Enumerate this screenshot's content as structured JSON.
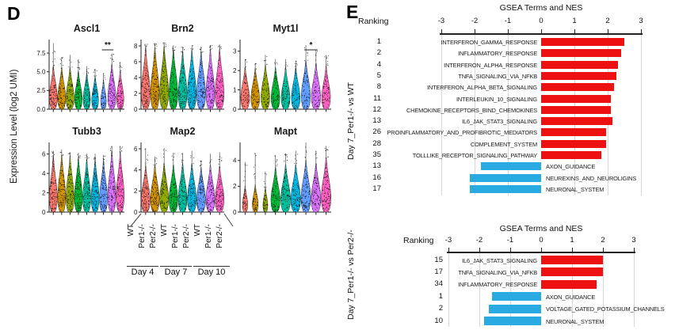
{
  "panelD": {
    "label": "D"
  },
  "panelE": {
    "label": "E"
  },
  "chart_data": [
    {
      "type": "violin",
      "panel": "D",
      "y_axis_label": "Expression Level (log2 UMI)",
      "group_labels": [
        "WT",
        "Per1-/-",
        "Per2-/-",
        "WT",
        "Per1-/-",
        "Per2-/-",
        "WT",
        "Per1-/-",
        "Per2-/-"
      ],
      "day_labels": [
        "Day 4",
        "Day 7",
        "Day 10"
      ],
      "palette": [
        "#F8766D",
        "#D39200",
        "#93AA00",
        "#00BA38",
        "#00C19F",
        "#00B9E3",
        "#619CFF",
        "#DB72FB",
        "#FF61C3"
      ],
      "plots": [
        {
          "gene": "Ascl1",
          "yticks": [
            "0.0",
            "2.5",
            "5.0",
            "7.5"
          ],
          "ymax": 9.3,
          "significance": {
            "text": "**",
            "span": [
              7,
              8
            ]
          },
          "heights": [
            0.62,
            0.6,
            0.6,
            0.55,
            0.52,
            0.48,
            0.42,
            0.65,
            0.55
          ],
          "spikes": [
            0.95,
            0.75,
            0.78,
            0.72,
            0.62,
            0.58,
            0.52,
            0.8,
            0.68
          ],
          "widths": [
            1,
            1,
            1,
            0.95,
            0.9,
            0.85,
            0.7,
            1,
            0.9
          ],
          "densities": [
            85,
            85,
            85,
            80,
            75,
            70,
            45,
            90,
            75
          ]
        },
        {
          "gene": "Brn2",
          "yticks": [
            "0",
            "2",
            "4",
            "6",
            "8"
          ],
          "ymax": 8.8,
          "heights": [
            0.88,
            0.88,
            0.9,
            0.85,
            0.82,
            0.85,
            0.82,
            0.85,
            0.86
          ],
          "spikes": [
            0.94,
            0.95,
            0.96,
            0.92,
            0.9,
            0.92,
            0.9,
            0.92,
            0.93
          ],
          "widths": [
            1,
            1,
            1,
            1,
            1,
            1,
            1,
            1,
            1
          ],
          "density": 110
        },
        {
          "gene": "Myt1l",
          "yticks": [
            "0",
            "1",
            "2",
            "3"
          ],
          "ymax": 3.6,
          "significance": {
            "text": "*",
            "span": [
              7,
              8
            ]
          },
          "heights": [
            0.6,
            0.58,
            0.64,
            0.6,
            0.6,
            0.6,
            0.7,
            0.66,
            0.62
          ],
          "spikes": [
            0.72,
            0.66,
            0.78,
            0.72,
            0.72,
            0.7,
            0.92,
            0.85,
            0.78
          ],
          "widths": [
            0.9,
            0.9,
            0.9,
            0.9,
            0.9,
            0.9,
            0.95,
            0.95,
            0.9
          ],
          "density": 70
        },
        {
          "gene": "Tubb3",
          "yticks": [
            "0",
            "2",
            "4",
            "6"
          ],
          "ymax": 7.2,
          "heights": [
            0.8,
            0.82,
            0.8,
            0.78,
            0.76,
            0.76,
            0.74,
            0.88,
            0.86
          ],
          "spikes": [
            0.88,
            0.9,
            0.86,
            0.85,
            0.84,
            0.84,
            0.82,
            0.95,
            0.95
          ],
          "widths": [
            1,
            1,
            1,
            1,
            1,
            1,
            1,
            1,
            1
          ],
          "density": 100
        },
        {
          "gene": "Map2",
          "yticks": [
            "0",
            "2",
            "4",
            "6"
          ],
          "ymax": 6.6,
          "heights": [
            0.66,
            0.68,
            0.7,
            0.68,
            0.7,
            0.7,
            0.64,
            0.68,
            0.66
          ],
          "spikes": [
            0.92,
            0.8,
            0.92,
            0.85,
            0.85,
            0.88,
            0.74,
            0.84,
            0.86
          ],
          "widths": [
            1,
            1,
            1,
            1,
            1,
            1,
            1,
            1,
            1
          ],
          "density": 95
        },
        {
          "gene": "Mapt",
          "yticks": [
            "0",
            "2",
            "4"
          ],
          "ymax": 5.4,
          "heights": [
            0.38,
            0.4,
            0.36,
            0.64,
            0.68,
            0.68,
            0.74,
            0.7,
            0.78
          ],
          "spikes": [
            0.72,
            0.85,
            0.58,
            0.82,
            0.84,
            0.88,
            1.0,
            0.88,
            0.95
          ],
          "widths": [
            0.55,
            0.6,
            0.5,
            0.95,
            1,
            1,
            1,
            1,
            1
          ],
          "densities": [
            45,
            50,
            40,
            85,
            90,
            90,
            100,
            95,
            105
          ]
        }
      ]
    },
    {
      "type": "bar",
      "panel": "E-top",
      "title": "GSEA Terms and NES",
      "ranking_label": "Ranking",
      "side_label": "Day 7_Per1-/- vs WT",
      "orientation": "horizontal",
      "xlim": [
        -3,
        3
      ],
      "ticks": [
        -3,
        -2,
        -1,
        0,
        1,
        2,
        3
      ],
      "positive_color": "#EE1111",
      "negative_color": "#29ABE2",
      "rows": [
        {
          "rank": "1",
          "term": "INTERFERON_GAMMA_RESPONSE",
          "nes": 2.5
        },
        {
          "rank": "2",
          "term": "INFLAMMATORY_RESPONSE",
          "nes": 2.4
        },
        {
          "rank": "4",
          "term": "INTERFERON_ALPHA_RESPONSE",
          "nes": 2.3
        },
        {
          "rank": "5",
          "term": "TNFA_SIGNALING_VIA_NFKB",
          "nes": 2.25
        },
        {
          "rank": "8",
          "term": "INTERFERON_ALPHA_BETA_SIGNALING",
          "nes": 2.2
        },
        {
          "rank": "11",
          "term": "INTERLEUKIN_10_SIGNALING",
          "nes": 2.1
        },
        {
          "rank": "12",
          "term": "CHEMOKINE_RECEPTORS_BIND_CHEMOKINES",
          "nes": 2.1
        },
        {
          "rank": "13",
          "term": "IL6_JAK_STAT3_SIGNALING",
          "nes": 2.15
        },
        {
          "rank": "26",
          "term": "PROINFLAMMATORY_AND_PROFIBROTIC_MEDIATORS",
          "nes": 1.95
        },
        {
          "rank": "28",
          "term": "COMPLEMENT_SYSTEM",
          "nes": 1.95
        },
        {
          "rank": "35",
          "term": "TOLLLIKE_RECEPTOR_SIGNALING_PATHWAY",
          "nes": 1.8
        },
        {
          "rank": "13",
          "term": "AXON_GUIDANCE",
          "nes": -1.8
        },
        {
          "rank": "16",
          "term": "NEUREXINS_AND_NEUROLIGINS",
          "nes": -2.15
        },
        {
          "rank": "17",
          "term": "NEURONAL_SYSTEM",
          "nes": -2.15
        }
      ]
    },
    {
      "type": "bar",
      "panel": "E-bottom",
      "title": "GSEA Terms and NES",
      "ranking_label": "Ranking",
      "side_label": "Day 7_Per1-/- vs Per2-/-",
      "orientation": "horizontal",
      "xlim": [
        -3,
        3
      ],
      "ticks": [
        -3,
        -2,
        -1,
        0,
        1,
        2,
        3
      ],
      "positive_color": "#EE1111",
      "negative_color": "#29ABE2",
      "rows": [
        {
          "rank": "15",
          "term": "IL6_JAK_STAT3_SIGNALING",
          "nes": 2.0
        },
        {
          "rank": "17",
          "term": "TNFA_SIGNALING_VIA_NFKB",
          "nes": 2.0
        },
        {
          "rank": "34",
          "term": "INFLAMMATORY_RESPONSE",
          "nes": 1.8
        },
        {
          "rank": "1",
          "term": "AXON_GUIDANCE",
          "nes": -1.6
        },
        {
          "rank": "2",
          "term": "VOLTAGE_GATED_POTASSIUM_CHANNELS",
          "nes": -1.7
        },
        {
          "rank": "10",
          "term": "NEURONAL_SYSTEM",
          "nes": -1.85
        }
      ]
    }
  ]
}
